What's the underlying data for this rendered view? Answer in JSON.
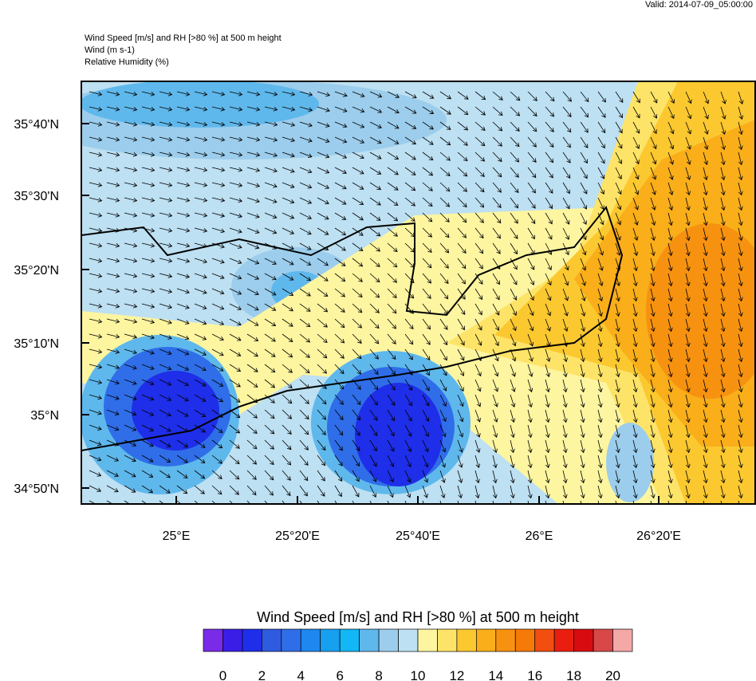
{
  "valid": "Valid: 2014-07-09_05:00:00",
  "header": [
    "Wind Speed [m/s] and RH [>80 %] at 500 m height",
    "Wind   (m s-1)",
    "Relative Humidity   (%)"
  ],
  "lat_labels": [
    "35°40'N",
    "35°30'N",
    "35°20'N",
    "35°10'N",
    "35°N",
    "34°50'N"
  ],
  "lon_labels": [
    "25°E",
    "25°20'E",
    "25°40'E",
    "26°E",
    "26°20'E"
  ],
  "colorbar": {
    "title": "Wind Speed [m/s] and RH [>80 %] at 500 m height",
    "colors": [
      "#7a2be8",
      "#3a1ee8",
      "#1f2ee8",
      "#2f5be0",
      "#2f6ee8",
      "#1e88f0",
      "#18a0f0",
      "#12b8f5",
      "#5fb8ec",
      "#9ccdec",
      "#bde0f2",
      "#fdf5a0",
      "#fde468",
      "#fbc830",
      "#f9ae1a",
      "#f79210",
      "#f57a08",
      "#f24e10",
      "#ea1e10",
      "#d80c10",
      "#d84848",
      "#f4a8a8"
    ],
    "labels": [
      0,
      2,
      4,
      6,
      8,
      10,
      12,
      14,
      16,
      18,
      20
    ]
  }
}
